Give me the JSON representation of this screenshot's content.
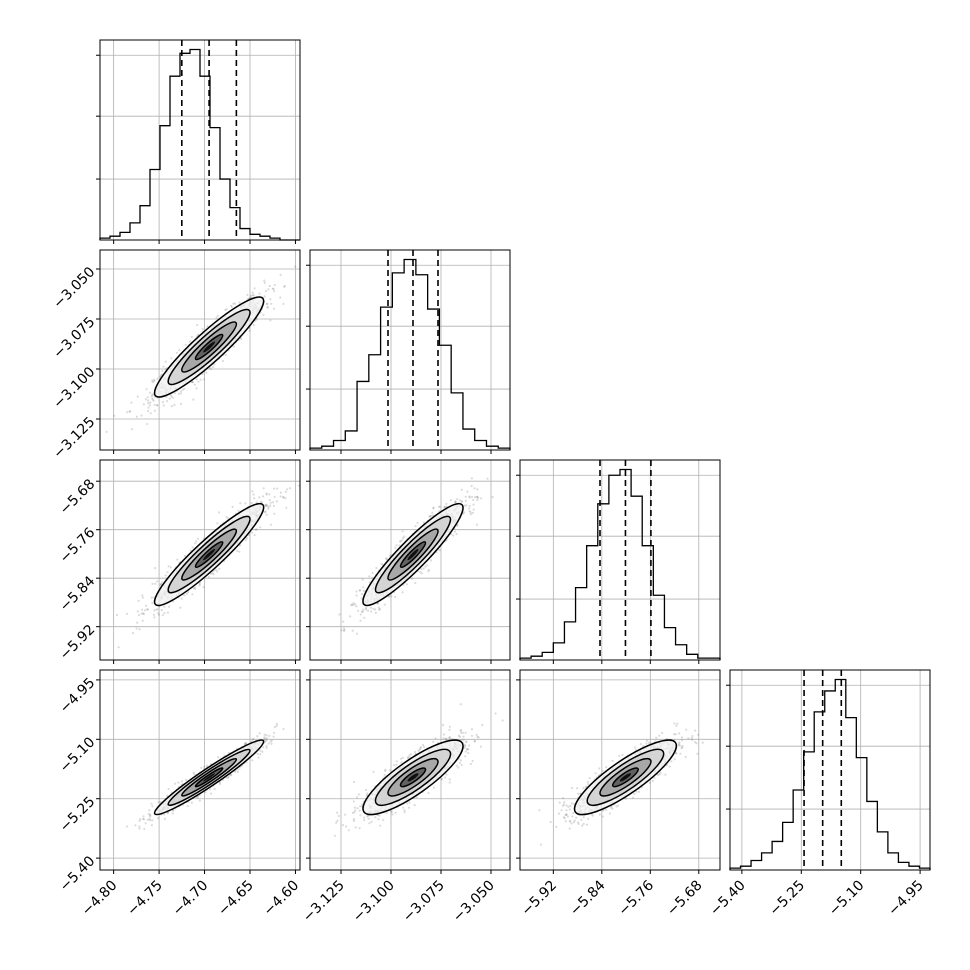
{
  "chart_data": {
    "type": "corner",
    "colors": {
      "line": "#000000",
      "grid": "#b0b0b0",
      "scatter": "#7f7f7f",
      "frame": "#000000"
    },
    "grid": true,
    "parameters": [
      {
        "range": [
          -4.815,
          -4.595
        ],
        "ticks": [
          -4.8,
          -4.75,
          -4.7,
          -4.65,
          -4.6
        ],
        "tick_labels": [
          "−4.80",
          "−4.75",
          "−4.70",
          "−4.65",
          "−4.60"
        ],
        "quantiles": [
          -4.725,
          -4.695,
          -4.665
        ],
        "histogram": {
          "edges_range": [
            -4.815,
            -4.595
          ],
          "counts": [
            1,
            2,
            4,
            9,
            18,
            37,
            60,
            86,
            98,
            100,
            86,
            59,
            32,
            17,
            6,
            3,
            2,
            1,
            0,
            0
          ]
        },
        "hist_yticks": [
          32,
          65,
          97
        ]
      },
      {
        "range": [
          -3.1405,
          -3.0405
        ],
        "ticks": [
          -3.125,
          -3.1,
          -3.075,
          -3.05
        ],
        "tick_labels": [
          "−3.125",
          "−3.100",
          "−3.075",
          "−3.050"
        ],
        "quantiles": [
          -3.1015,
          -3.089,
          -3.0765
        ],
        "histogram": {
          "edges_range": [
            -3.1405,
            -3.0405
          ],
          "counts": [
            1,
            2,
            5,
            10,
            36,
            50,
            75,
            93,
            100,
            92,
            74,
            55,
            30,
            11,
            5,
            2,
            1
          ]
        },
        "hist_yticks": [
          32,
          65,
          97
        ]
      },
      {
        "range": [
          -5.975,
          -5.645
        ],
        "ticks": [
          -5.92,
          -5.84,
          -5.76,
          -5.68
        ],
        "tick_labels": [
          "−5.92",
          "−5.84",
          "−5.76",
          "−5.68"
        ],
        "quantiles": [
          -5.843,
          -5.801,
          -5.759
        ],
        "histogram": {
          "edges_range": [
            -5.975,
            -5.645
          ],
          "counts": [
            1,
            2,
            4,
            9,
            20,
            38,
            60,
            82,
            97,
            100,
            86,
            60,
            34,
            17,
            8,
            3,
            1,
            1
          ]
        },
        "hist_yticks": [
          32,
          65,
          97
        ]
      },
      {
        "range": [
          -5.43,
          -4.925
        ],
        "ticks": [
          -5.4,
          -5.25,
          -5.1,
          -4.95
        ],
        "tick_labels": [
          "−5.40",
          "−5.25",
          "−5.10",
          "−4.95"
        ],
        "quantiles": [
          -5.243,
          -5.196,
          -5.149
        ],
        "histogram": {
          "edges_range": [
            -5.43,
            -4.925
          ],
          "counts": [
            1,
            2,
            5,
            9,
            15,
            25,
            42,
            62,
            83,
            94,
            100,
            80,
            59,
            36,
            20,
            9,
            4,
            2,
            1
          ]
        },
        "hist_yticks": [
          32,
          65,
          97
        ]
      }
    ],
    "pair_correlations": [
      {
        "row": 1,
        "col": 0,
        "rho": 0.92
      },
      {
        "row": 2,
        "col": 0,
        "rho": 0.93
      },
      {
        "row": 2,
        "col": 1,
        "rho": 0.92
      },
      {
        "row": 3,
        "col": 0,
        "rho": 0.96
      },
      {
        "row": 3,
        "col": 1,
        "rho": 0.84
      },
      {
        "row": 3,
        "col": 2,
        "rho": 0.85
      }
    ],
    "contour_levels": [
      0.5,
      1.0,
      1.5,
      2.0
    ]
  }
}
